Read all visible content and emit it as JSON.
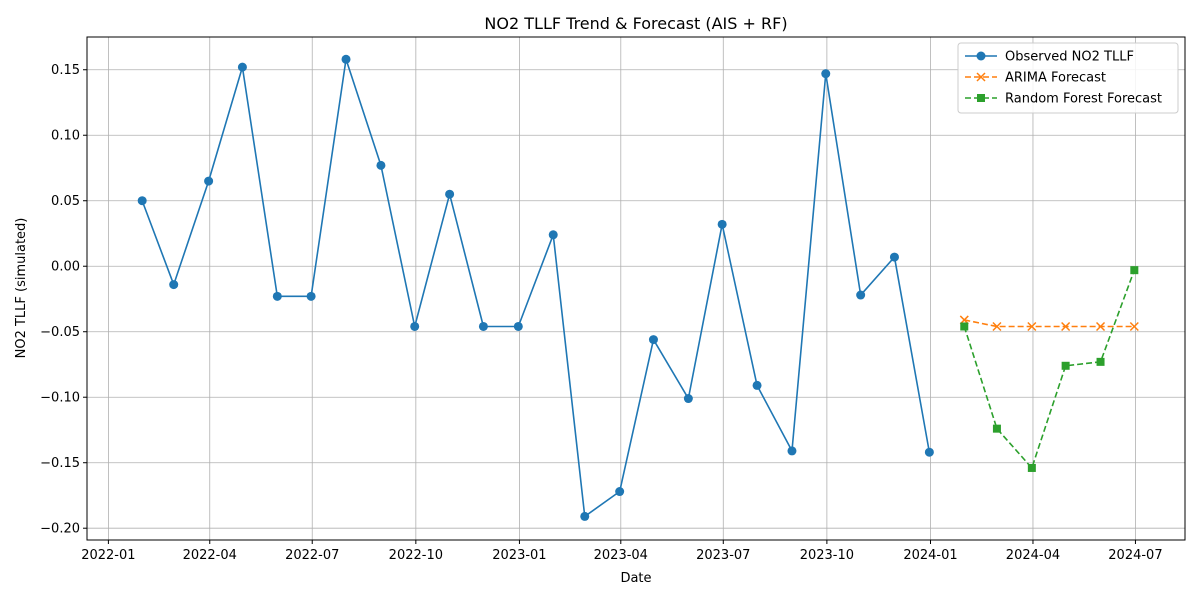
{
  "chart_data": {
    "type": "line",
    "title": "NO2 TLLF Trend & Forecast (AIS + RF)",
    "xlabel": "Date",
    "ylabel": "NO2 TLLF (simulated)",
    "xlim": [
      "2021-12-13",
      "2024-08-14"
    ],
    "ylim": [
      -0.209,
      0.175
    ],
    "grid": true,
    "legend_position": "top-right",
    "x_ticks": [
      {
        "date": "2022-01-01",
        "label": "2022-01"
      },
      {
        "date": "2022-04-01",
        "label": "2022-04"
      },
      {
        "date": "2022-07-01",
        "label": "2022-07"
      },
      {
        "date": "2022-10-01",
        "label": "2022-10"
      },
      {
        "date": "2023-01-01",
        "label": "2023-01"
      },
      {
        "date": "2023-04-01",
        "label": "2023-04"
      },
      {
        "date": "2023-07-01",
        "label": "2023-07"
      },
      {
        "date": "2023-10-01",
        "label": "2023-10"
      },
      {
        "date": "2024-01-01",
        "label": "2024-01"
      },
      {
        "date": "2024-04-01",
        "label": "2024-04"
      },
      {
        "date": "2024-07-01",
        "label": "2024-07"
      }
    ],
    "y_ticks": [
      {
        "value": 0.15,
        "label": "0.15"
      },
      {
        "value": 0.1,
        "label": "0.10"
      },
      {
        "value": 0.05,
        "label": "0.05"
      },
      {
        "value": 0.0,
        "label": "0.00"
      },
      {
        "value": -0.05,
        "label": "−0.05"
      },
      {
        "value": -0.1,
        "label": "−0.10"
      },
      {
        "value": -0.15,
        "label": "−0.15"
      },
      {
        "value": -0.2,
        "label": "−0.20"
      }
    ],
    "series": [
      {
        "name": "Observed NO2 TLLF",
        "color": "#1f77b4",
        "marker": "circle",
        "line_style": "solid",
        "x": [
          "2022-01-31",
          "2022-02-28",
          "2022-03-31",
          "2022-04-30",
          "2022-05-31",
          "2022-06-30",
          "2022-07-31",
          "2022-08-31",
          "2022-09-30",
          "2022-10-31",
          "2022-11-30",
          "2022-12-31",
          "2023-01-31",
          "2023-02-28",
          "2023-03-31",
          "2023-04-30",
          "2023-05-31",
          "2023-06-30",
          "2023-07-31",
          "2023-08-31",
          "2023-09-30",
          "2023-10-31",
          "2023-11-30",
          "2023-12-31"
        ],
        "y": [
          0.05,
          -0.014,
          0.065,
          0.152,
          -0.023,
          -0.023,
          0.158,
          0.077,
          -0.046,
          0.055,
          -0.046,
          -0.046,
          0.024,
          -0.191,
          -0.172,
          -0.056,
          -0.101,
          0.032,
          -0.091,
          -0.141,
          0.147,
          -0.022,
          0.007,
          -0.142
        ]
      },
      {
        "name": "ARIMA Forecast",
        "color": "#ff7f0e",
        "marker": "x",
        "line_style": "dashed",
        "x": [
          "2024-01-31",
          "2024-02-29",
          "2024-03-31",
          "2024-04-30",
          "2024-05-31",
          "2024-06-30"
        ],
        "y": [
          -0.041,
          -0.046,
          -0.046,
          -0.046,
          -0.046,
          -0.046
        ]
      },
      {
        "name": "Random Forest Forecast",
        "color": "#2ca02c",
        "marker": "square",
        "line_style": "dashed",
        "x": [
          "2024-01-31",
          "2024-02-29",
          "2024-03-31",
          "2024-04-30",
          "2024-05-31",
          "2024-06-30"
        ],
        "y": [
          -0.046,
          -0.124,
          -0.154,
          -0.076,
          -0.073,
          -0.003
        ]
      }
    ]
  }
}
